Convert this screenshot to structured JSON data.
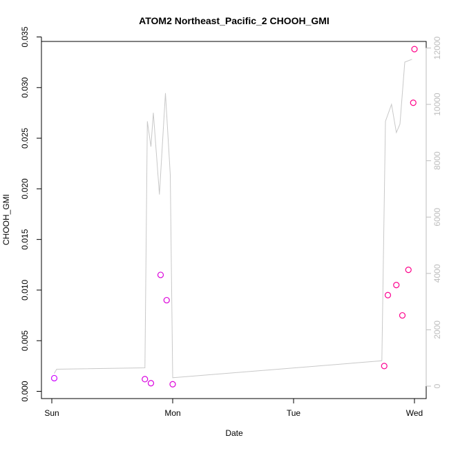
{
  "chart_data": {
    "type": "scatter",
    "title": "ATOM2 Northeast_Pacific_2 CHOOH_GMI",
    "xlabel": "Date",
    "ylabel": "CHOOH_GMI",
    "x_ticks": [
      "Sun",
      "Mon",
      "Tue",
      "Wed"
    ],
    "y_ticks": [
      "0.000",
      "0.005",
      "0.010",
      "0.015",
      "0.020",
      "0.025",
      "0.030",
      "0.035"
    ],
    "y2_ticks": [
      "0",
      "2000",
      "4000",
      "6000",
      "8000",
      "10000",
      "12000"
    ],
    "ylim": [
      0,
      0.035
    ],
    "y2lim": [
      0,
      12000
    ],
    "grid": false,
    "legend": "none",
    "colors": {
      "points_start": "#cc00ff",
      "points_end": "#ff0088",
      "altitude_line": "#c8c8c8",
      "axis": "#000000",
      "right_axis": "#bdbdbd"
    },
    "series": [
      {
        "values": [
          {
            "x": 0.02,
            "y": 0.0013
          },
          {
            "x": 0.77,
            "y": 0.0012
          },
          {
            "x": 0.82,
            "y": 0.0008
          },
          {
            "x": 0.9,
            "y": 0.0115
          },
          {
            "x": 0.95,
            "y": 0.009
          },
          {
            "x": 1.0,
            "y": 0.0007
          },
          {
            "x": 2.75,
            "y": 0.0025
          },
          {
            "x": 2.78,
            "y": 0.0095
          },
          {
            "x": 2.85,
            "y": 0.0105
          },
          {
            "x": 2.9,
            "y": 0.0075
          },
          {
            "x": 2.95,
            "y": 0.012
          },
          {
            "x": 2.99,
            "y": 0.0285
          },
          {
            "x": 3.0,
            "y": 0.0338
          }
        ]
      },
      {
        "axis": "right",
        "values": [
          {
            "x": 0.02,
            "y": 450
          },
          {
            "x": 0.04,
            "y": 600
          },
          {
            "x": 0.77,
            "y": 650
          },
          {
            "x": 0.79,
            "y": 9400
          },
          {
            "x": 0.82,
            "y": 8500
          },
          {
            "x": 0.84,
            "y": 9700
          },
          {
            "x": 0.89,
            "y": 6800
          },
          {
            "x": 0.94,
            "y": 10400
          },
          {
            "x": 0.98,
            "y": 7500
          },
          {
            "x": 1.0,
            "y": 300
          },
          {
            "x": 2.73,
            "y": 900
          },
          {
            "x": 2.76,
            "y": 9400
          },
          {
            "x": 2.81,
            "y": 10000
          },
          {
            "x": 2.85,
            "y": 9000
          },
          {
            "x": 2.88,
            "y": 9300
          },
          {
            "x": 2.92,
            "y": 11500
          },
          {
            "x": 2.98,
            "y": 11600
          }
        ]
      }
    ]
  }
}
